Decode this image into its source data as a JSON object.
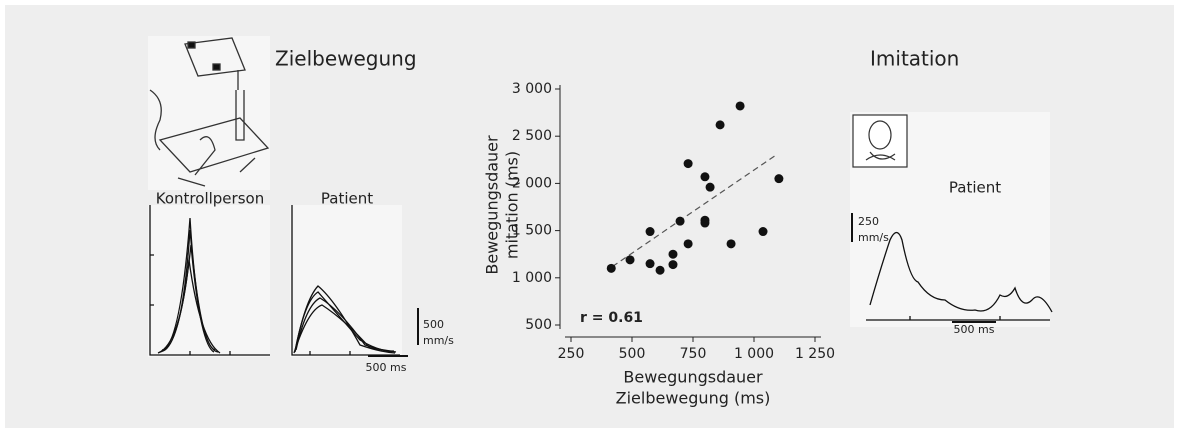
{
  "chart_data": {
    "type": "scatter",
    "x": [
      415,
      492,
      574,
      574,
      615,
      668,
      668,
      697,
      730,
      730,
      799,
      820,
      799,
      799,
      861,
      943,
      906,
      1037,
      1102
    ],
    "values": [
      1100,
      1190,
      1490,
      1150,
      1080,
      1250,
      1140,
      1600,
      1360,
      2210,
      2070,
      1960,
      1610,
      1580,
      2620,
      2820,
      1360,
      1490,
      2050
    ],
    "color": "#111111",
    "trendline": {
      "x": [
        420,
        1090
      ],
      "y": [
        1120,
        2300
      ]
    },
    "xlim": [
      250,
      1250
    ],
    "ylim": [
      500,
      3000
    ],
    "xticks": [
      250,
      500,
      750,
      {
        "value": 1000,
        "label": "1 000"
      },
      {
        "value": 1250,
        "label": "1 250"
      }
    ],
    "yticks": [
      500,
      {
        "value": 1000,
        "label": "1 000"
      },
      {
        "value": 1500,
        "label": "1 500"
      },
      {
        "value": 2000,
        "label": "2 000"
      },
      {
        "value": 2500,
        "label": "2 500"
      },
      {
        "value": 3000,
        "label": "3 000"
      }
    ],
    "xlabel": [
      "Bewegungsdauer",
      "Zielbewegung (ms)"
    ],
    "ylabel": [
      "Bewegungsdauer",
      "mitation (ms)"
    ],
    "annotation": "r = 0.61"
  },
  "panels": {
    "left_title": "Zielbewegung",
    "right_title": "Imitation",
    "control": "Kontrollperson",
    "patient_left": "Patient",
    "patient_right": "Patient",
    "scale_left_amp": [
      "500",
      "mm/s"
    ],
    "scale_left_time": "500 ms",
    "scale_right_amp": [
      "250",
      "mm/s"
    ],
    "scale_right_time": "500 ms"
  }
}
